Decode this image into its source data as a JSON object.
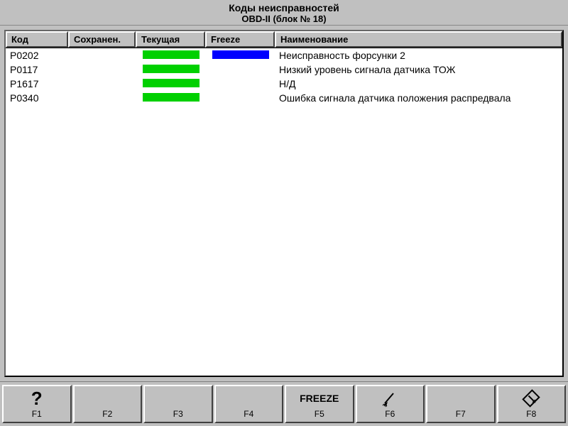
{
  "title": {
    "line1": "Коды неисправностей",
    "line2": "OBD-II (блок № 18)"
  },
  "columns": {
    "code": "Код",
    "saved": "Сохранен.",
    "current": "Текущая",
    "freeze": "Freeze",
    "name": "Наименование"
  },
  "status_colors": {
    "green": "#00d000",
    "blue": "#0000ff"
  },
  "rows": [
    {
      "code": "P0202",
      "saved": "",
      "current": "green",
      "freeze": "blue",
      "name": "Неисправность форсунки 2"
    },
    {
      "code": "P0117",
      "saved": "",
      "current": "green",
      "freeze": "",
      "name": "Низкий уровень сигнала датчика ТОЖ"
    },
    {
      "code": "P1617",
      "saved": "",
      "current": "green",
      "freeze": "",
      "name": "Н/Д"
    },
    {
      "code": "P0340",
      "saved": "",
      "current": "green",
      "freeze": "",
      "name": "Ошибка сигнала датчика положения распредвала"
    }
  ],
  "fkeys": [
    {
      "key": "F1",
      "icon": "question",
      "text": ""
    },
    {
      "key": "F2",
      "icon": "",
      "text": ""
    },
    {
      "key": "F3",
      "icon": "",
      "text": ""
    },
    {
      "key": "F4",
      "icon": "",
      "text": ""
    },
    {
      "key": "F5",
      "icon": "",
      "text": "FREEZE"
    },
    {
      "key": "F6",
      "icon": "broom",
      "text": ""
    },
    {
      "key": "F7",
      "icon": "",
      "text": ""
    },
    {
      "key": "F8",
      "icon": "exit",
      "text": ""
    }
  ]
}
